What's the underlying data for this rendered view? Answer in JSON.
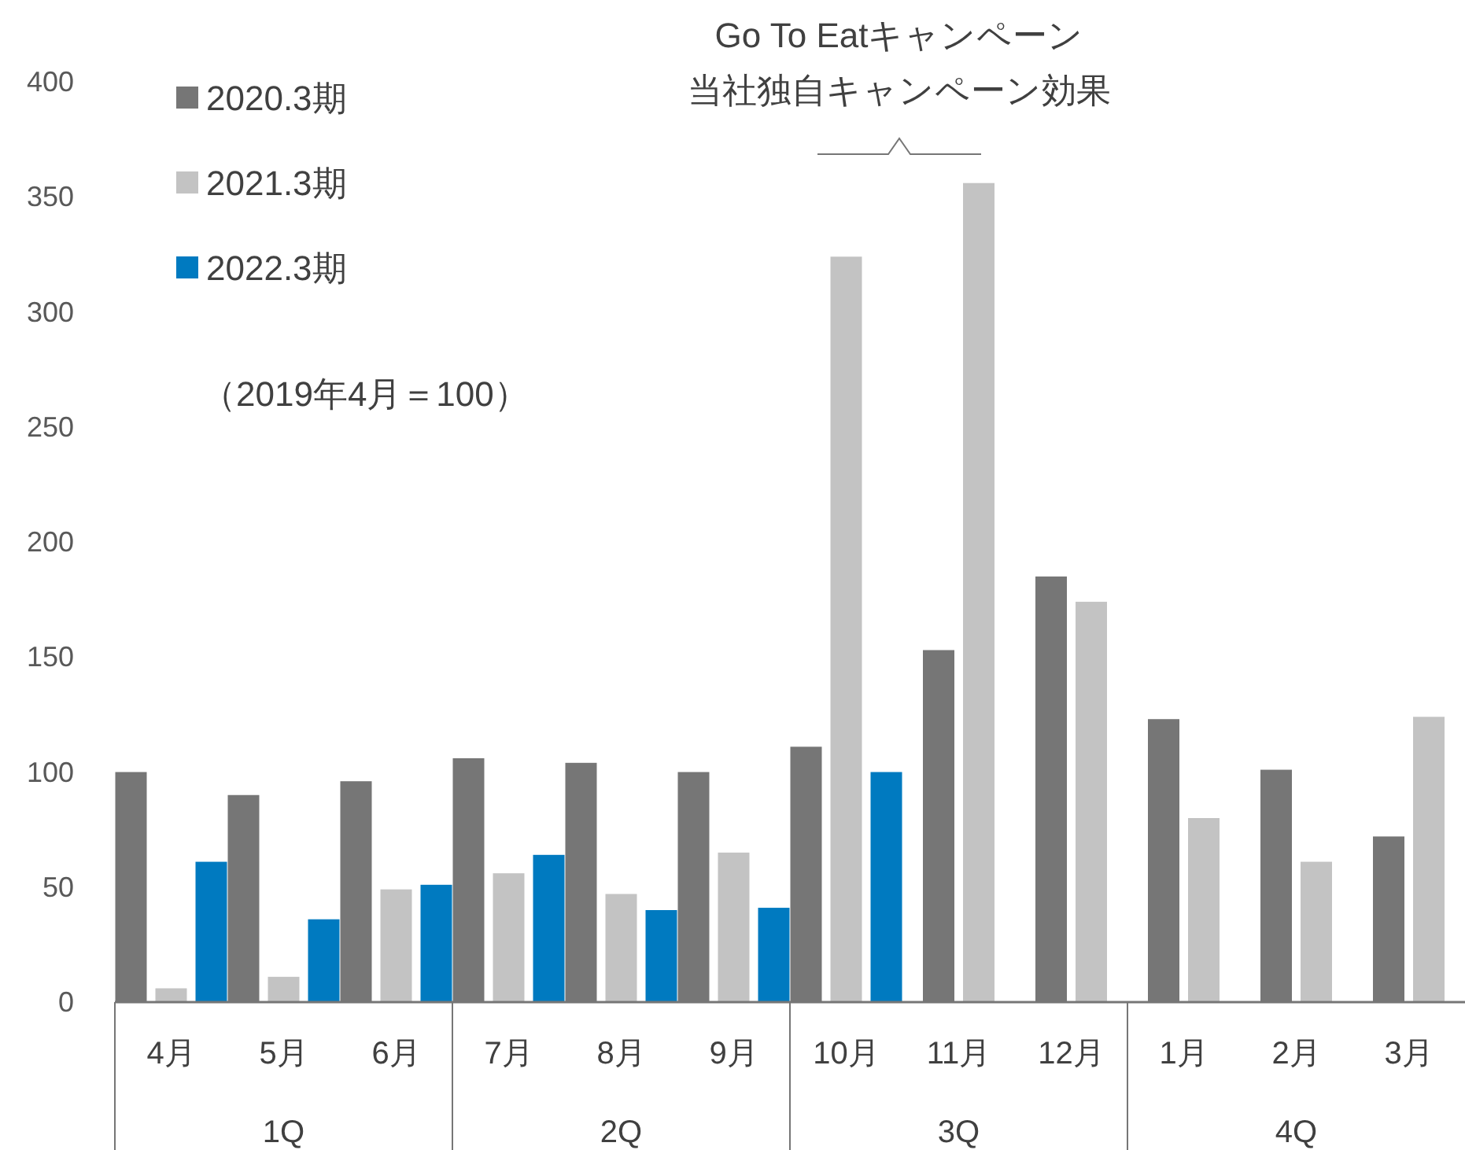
{
  "chart_data": {
    "type": "bar",
    "subtitle": "（2019年4月＝100）",
    "categories": [
      "4月",
      "5月",
      "6月",
      "7月",
      "8月",
      "9月",
      "10月",
      "11月",
      "12月",
      "1月",
      "2月",
      "3月"
    ],
    "series": [
      {
        "name": "2020.3期",
        "color": "#767676",
        "values": [
          100,
          90,
          96,
          106,
          104,
          100,
          111,
          153,
          185,
          123,
          101,
          72
        ]
      },
      {
        "name": "2021.3期",
        "color": "#c3c3c3",
        "values": [
          6,
          11,
          49,
          56,
          47,
          65,
          324,
          356,
          174,
          80,
          61,
          124
        ]
      },
      {
        "name": "2022.3期",
        "color": "#007ac0",
        "values": [
          61,
          36,
          51,
          64,
          40,
          41,
          100,
          null,
          null,
          null,
          null,
          null
        ]
      }
    ],
    "ylim": [
      0,
      400
    ],
    "yticks": [
      0,
      50,
      100,
      150,
      200,
      250,
      300,
      350,
      400
    ],
    "legend": "top left",
    "annotations": [
      "Go To Eatキャンペーン",
      "当社独自キャンペーン効果",
      "1Q",
      "2Q",
      "3Q",
      "4Q"
    ]
  }
}
